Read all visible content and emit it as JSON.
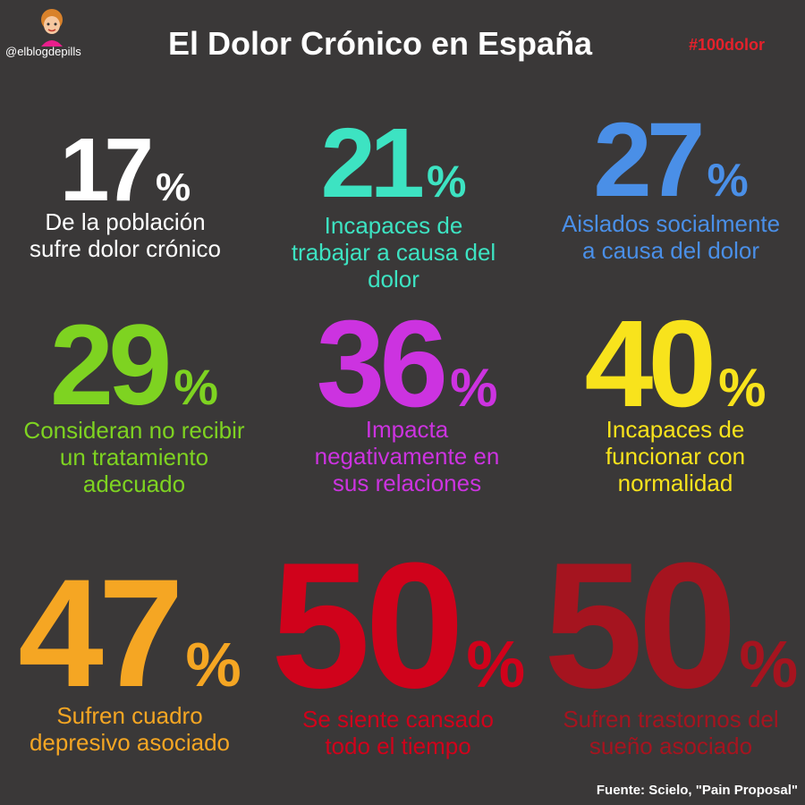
{
  "header": {
    "handle": "@elblogdepills",
    "title": "El Dolor Crónico en España",
    "hashtag": "#100dolor"
  },
  "stats": [
    {
      "number": "17",
      "unit": "%",
      "desc": [
        "De la población",
        "sufre dolor crónico"
      ],
      "color": "#ffffff"
    },
    {
      "number": "21",
      "unit": "%",
      "desc": [
        "Incapaces de",
        "trabajar a causa del",
        "dolor"
      ],
      "color": "#3de3c2"
    },
    {
      "number": "27",
      "unit": "%",
      "desc": [
        "Aislados socialmente",
        "a causa del dolor"
      ],
      "color": "#4a8fe7"
    },
    {
      "number": "29",
      "unit": "%",
      "desc": [
        "Consideran no recibir",
        "un tratamiento",
        "adecuado"
      ],
      "color": "#7ed321"
    },
    {
      "number": "36",
      "unit": "%",
      "desc": [
        "Impacta",
        "negativamente en",
        "sus relaciones"
      ],
      "color": "#cc33e0"
    },
    {
      "number": "40",
      "unit": "%",
      "desc": [
        "Incapaces de",
        "funcionar con",
        "normalidad"
      ],
      "color": "#f8e31c"
    },
    {
      "number": "47",
      "unit": "%",
      "desc": [
        "Sufren cuadro",
        "depresivo asociado"
      ],
      "color": "#f5a623"
    },
    {
      "number": "50",
      "unit": "%",
      "desc": [
        "Se siente cansado",
        "todo el tiempo"
      ],
      "color": "#d0021b"
    },
    {
      "number": "50",
      "unit": "%",
      "desc": [
        "Sufren trastornos del",
        "sueño asociado"
      ],
      "color": "#a5141f"
    }
  ],
  "footer": {
    "source": "Fuente: Scielo, \"Pain Proposal\""
  }
}
